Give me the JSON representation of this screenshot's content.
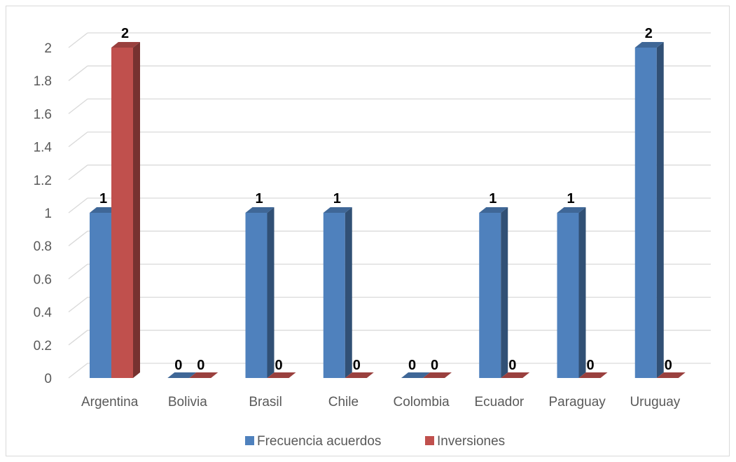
{
  "chart_data": {
    "type": "bar",
    "style": "3d-clustered-column",
    "categories": [
      "Argentina",
      "Bolivia",
      "Brasil",
      "Chile",
      "Colombia",
      "Ecuador",
      "Paraguay",
      "Uruguay"
    ],
    "series": [
      {
        "name": "Frecuencia acuerdos",
        "color": "#4f81bd",
        "values": [
          1,
          0,
          1,
          1,
          0,
          1,
          1,
          2
        ]
      },
      {
        "name": "Inversiones",
        "color": "#c0504d",
        "values": [
          2,
          0,
          0,
          0,
          0,
          0,
          0,
          0
        ]
      }
    ],
    "ylim": [
      0,
      2
    ],
    "yticks": [
      "0",
      "0.2",
      "0.4",
      "0.6",
      "0.8",
      "1",
      "1.2",
      "1.4",
      "1.6",
      "1.8",
      "2"
    ],
    "data_labels": true,
    "grid": true,
    "legend": "bottom"
  }
}
